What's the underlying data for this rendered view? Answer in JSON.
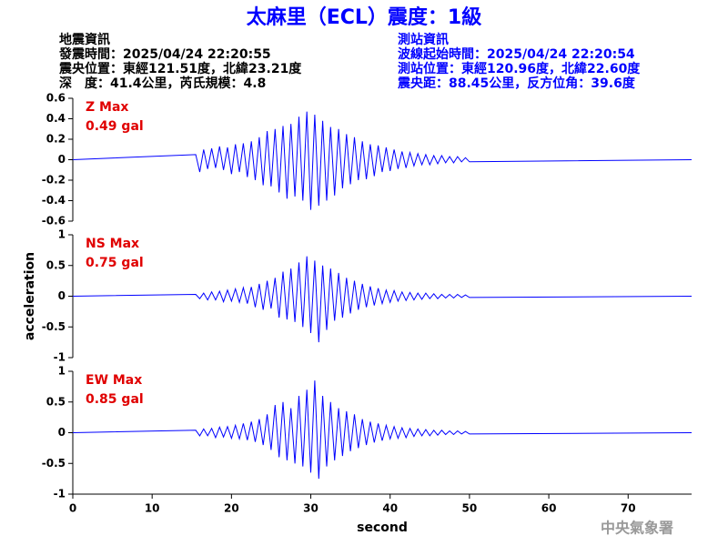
{
  "header": {
    "title": "太麻里（ECL）震度：1級",
    "left_info": [
      "地震資訊",
      "發震時間：2025/04/24 22:20:55",
      "震央位置：東經121.51度，北緯23.21度",
      "深　度：41.4公里，芮氏規模：4.8"
    ],
    "right_info": [
      "測站資訊",
      "波線起始時間：2025/04/24 22:20:54",
      "測站位置：東經120.96度，北緯22.60度",
      "震央距：88.45公里，反方位角：39.6度"
    ],
    "footer": "中央氣象署"
  },
  "chart_data": [
    {
      "type": "line",
      "annotations": [
        "Z Max",
        "0.49 gal"
      ],
      "color": "#0000ff",
      "x": [
        0,
        15.5,
        16,
        16.5,
        17,
        17.5,
        18,
        18.5,
        19,
        19.5,
        20,
        20.5,
        21,
        21.5,
        22,
        22.5,
        23,
        23.5,
        24,
        24.5,
        25,
        25.5,
        26,
        26.5,
        27,
        27.5,
        28,
        28.5,
        29,
        29.5,
        30,
        30.5,
        31,
        31.5,
        32,
        32.5,
        33,
        33.5,
        34,
        34.5,
        35,
        35.5,
        36,
        36.5,
        37,
        37.5,
        38,
        38.5,
        39,
        39.5,
        40,
        40.5,
        41,
        41.5,
        42,
        42.5,
        43,
        43.5,
        44,
        44.5,
        45,
        45.5,
        46,
        46.5,
        47,
        47.5,
        48,
        48.5,
        49,
        49.5,
        50,
        78
      ],
      "values": [
        0,
        0.05,
        -0.12,
        0.1,
        -0.09,
        0.11,
        -0.08,
        0.13,
        -0.1,
        0.12,
        -0.14,
        0.15,
        -0.12,
        0.16,
        -0.17,
        0.18,
        -0.2,
        0.22,
        -0.25,
        0.28,
        -0.26,
        0.3,
        -0.32,
        0.33,
        -0.38,
        0.35,
        -0.36,
        0.42,
        -0.4,
        0.47,
        -0.49,
        0.44,
        -0.45,
        0.38,
        -0.4,
        0.32,
        -0.35,
        0.3,
        -0.28,
        0.25,
        -0.24,
        0.22,
        -0.2,
        0.18,
        -0.19,
        0.15,
        -0.16,
        0.14,
        -0.12,
        0.12,
        -0.11,
        0.1,
        -0.09,
        0.08,
        -0.08,
        0.07,
        -0.06,
        0.06,
        -0.05,
        0.05,
        -0.05,
        0.04,
        -0.04,
        0.04,
        -0.03,
        0.03,
        -0.03,
        0.03,
        -0.02,
        0.02,
        -0.02,
        0
      ],
      "xlim": [
        0,
        78
      ],
      "ylim": [
        -0.6,
        0.6
      ],
      "yticks": [
        -0.6,
        -0.4,
        -0.2,
        0,
        0.2,
        0.4,
        0.6
      ]
    },
    {
      "type": "line",
      "annotations": [
        "NS Max",
        "0.75 gal"
      ],
      "color": "#0000ff",
      "ylabel": "acceleration",
      "x": [
        0,
        15.5,
        16,
        16.5,
        17,
        17.5,
        18,
        18.5,
        19,
        19.5,
        20,
        20.5,
        21,
        21.5,
        22,
        22.5,
        23,
        23.5,
        24,
        24.5,
        25,
        25.5,
        26,
        26.5,
        27,
        27.5,
        28,
        28.5,
        29,
        29.5,
        30,
        30.5,
        31,
        31.5,
        32,
        32.5,
        33,
        33.5,
        34,
        34.5,
        35,
        35.5,
        36,
        36.5,
        37,
        37.5,
        38,
        38.5,
        39,
        39.5,
        40,
        40.5,
        41,
        41.5,
        42,
        42.5,
        43,
        43.5,
        44,
        44.5,
        45,
        45.5,
        46,
        46.5,
        47,
        47.5,
        48,
        48.5,
        49,
        49.5,
        50,
        78
      ],
      "values": [
        0,
        0.03,
        -0.04,
        0.05,
        -0.06,
        0.07,
        -0.06,
        0.08,
        -0.09,
        0.1,
        -0.08,
        0.12,
        -0.1,
        0.14,
        -0.12,
        0.15,
        -0.18,
        0.2,
        -0.22,
        0.25,
        -0.2,
        0.3,
        -0.35,
        0.4,
        -0.38,
        0.45,
        -0.42,
        0.55,
        -0.5,
        0.65,
        -0.6,
        0.58,
        -0.75,
        0.5,
        -0.55,
        0.45,
        -0.4,
        0.38,
        -0.35,
        0.3,
        -0.28,
        0.25,
        -0.22,
        0.2,
        -0.18,
        0.16,
        -0.15,
        0.13,
        -0.12,
        0.1,
        -0.1,
        0.09,
        -0.08,
        0.07,
        -0.07,
        0.06,
        -0.06,
        0.05,
        -0.05,
        0.05,
        -0.04,
        0.04,
        -0.04,
        0.03,
        -0.03,
        0.03,
        -0.03,
        0.03,
        -0.02,
        0.02,
        -0.02,
        0
      ],
      "xlim": [
        0,
        78
      ],
      "ylim": [
        -1,
        1
      ],
      "yticks": [
        -1,
        -0.5,
        0,
        0.5,
        1
      ]
    },
    {
      "type": "line",
      "annotations": [
        "EW Max",
        "0.85 gal"
      ],
      "color": "#0000ff",
      "xlabel": "second",
      "x": [
        0,
        15.5,
        16,
        16.5,
        17,
        17.5,
        18,
        18.5,
        19,
        19.5,
        20,
        20.5,
        21,
        21.5,
        22,
        22.5,
        23,
        23.5,
        24,
        24.5,
        25,
        25.5,
        26,
        26.5,
        27,
        27.5,
        28,
        28.5,
        29,
        29.5,
        30,
        30.5,
        31,
        31.5,
        32,
        32.5,
        33,
        33.5,
        34,
        34.5,
        35,
        35.5,
        36,
        36.5,
        37,
        37.5,
        38,
        38.5,
        39,
        39.5,
        40,
        40.5,
        41,
        41.5,
        42,
        42.5,
        43,
        43.5,
        44,
        44.5,
        45,
        45.5,
        46,
        46.5,
        47,
        47.5,
        48,
        48.5,
        49,
        49.5,
        50,
        78
      ],
      "values": [
        0,
        0.04,
        -0.05,
        0.06,
        -0.05,
        0.07,
        -0.08,
        0.09,
        -0.07,
        0.1,
        -0.09,
        0.12,
        -0.1,
        0.15,
        -0.12,
        0.18,
        -0.15,
        0.22,
        -0.2,
        0.3,
        -0.28,
        0.45,
        -0.4,
        0.5,
        -0.45,
        0.4,
        -0.5,
        0.6,
        -0.55,
        0.7,
        -0.65,
        0.85,
        -0.75,
        0.6,
        -0.55,
        0.5,
        -0.45,
        0.4,
        -0.38,
        0.35,
        -0.3,
        0.3,
        -0.25,
        0.22,
        -0.2,
        0.18,
        -0.16,
        0.15,
        -0.13,
        0.12,
        -0.1,
        0.1,
        -0.09,
        0.08,
        -0.08,
        0.07,
        -0.06,
        0.06,
        -0.05,
        0.05,
        -0.05,
        0.04,
        -0.04,
        0.04,
        -0.03,
        0.03,
        -0.03,
        0.03,
        -0.02,
        0.02,
        -0.02,
        0
      ],
      "xlim": [
        0,
        78
      ],
      "xticks": [
        0,
        10,
        20,
        30,
        40,
        50,
        60,
        70
      ],
      "ylim": [
        -1,
        1
      ],
      "yticks": [
        -1,
        -0.5,
        0,
        0.5,
        1
      ]
    }
  ]
}
